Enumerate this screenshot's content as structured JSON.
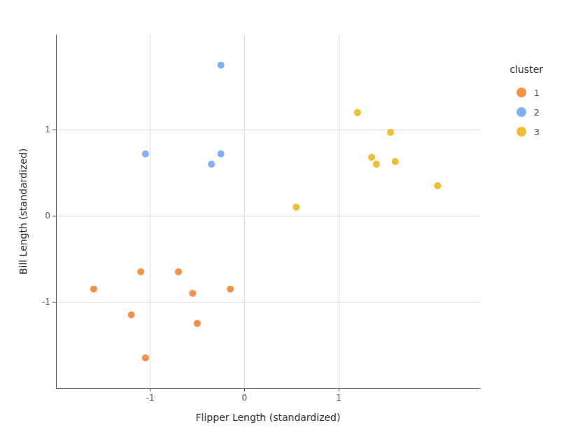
{
  "chart_data": {
    "type": "scatter",
    "xlabel": "Flipper Length (standardized)",
    "ylabel": "Bill Length (standardized)",
    "legend_title": "cluster",
    "series": [
      {
        "name": "1",
        "color": "#F5761A",
        "x": [
          -1.6,
          -1.2,
          -1.1,
          -1.05,
          -0.7,
          -0.55,
          -0.5,
          -0.15
        ],
        "values": [
          -0.85,
          -1.15,
          -0.65,
          -1.65,
          -0.65,
          -0.9,
          -1.25,
          -0.85
        ]
      },
      {
        "name": "2",
        "color": "#619CFF",
        "x": [
          -0.25,
          -0.25,
          -0.35,
          -1.05
        ],
        "values": [
          1.75,
          0.72,
          0.6,
          0.72
        ]
      },
      {
        "name": "3",
        "color": "#E8B000",
        "x": [
          0.55,
          1.2,
          1.35,
          1.4,
          1.55,
          1.6,
          2.05
        ],
        "values": [
          0.1,
          1.2,
          0.68,
          0.6,
          0.97,
          0.63,
          0.35
        ]
      }
    ],
    "xlim": [
      -2.0,
      2.5
    ],
    "ylim": [
      -2.0,
      2.1
    ],
    "xticks": [
      -1,
      0,
      1
    ],
    "yticks": [
      -1,
      0,
      1
    ],
    "grid": true,
    "legend": "right"
  }
}
